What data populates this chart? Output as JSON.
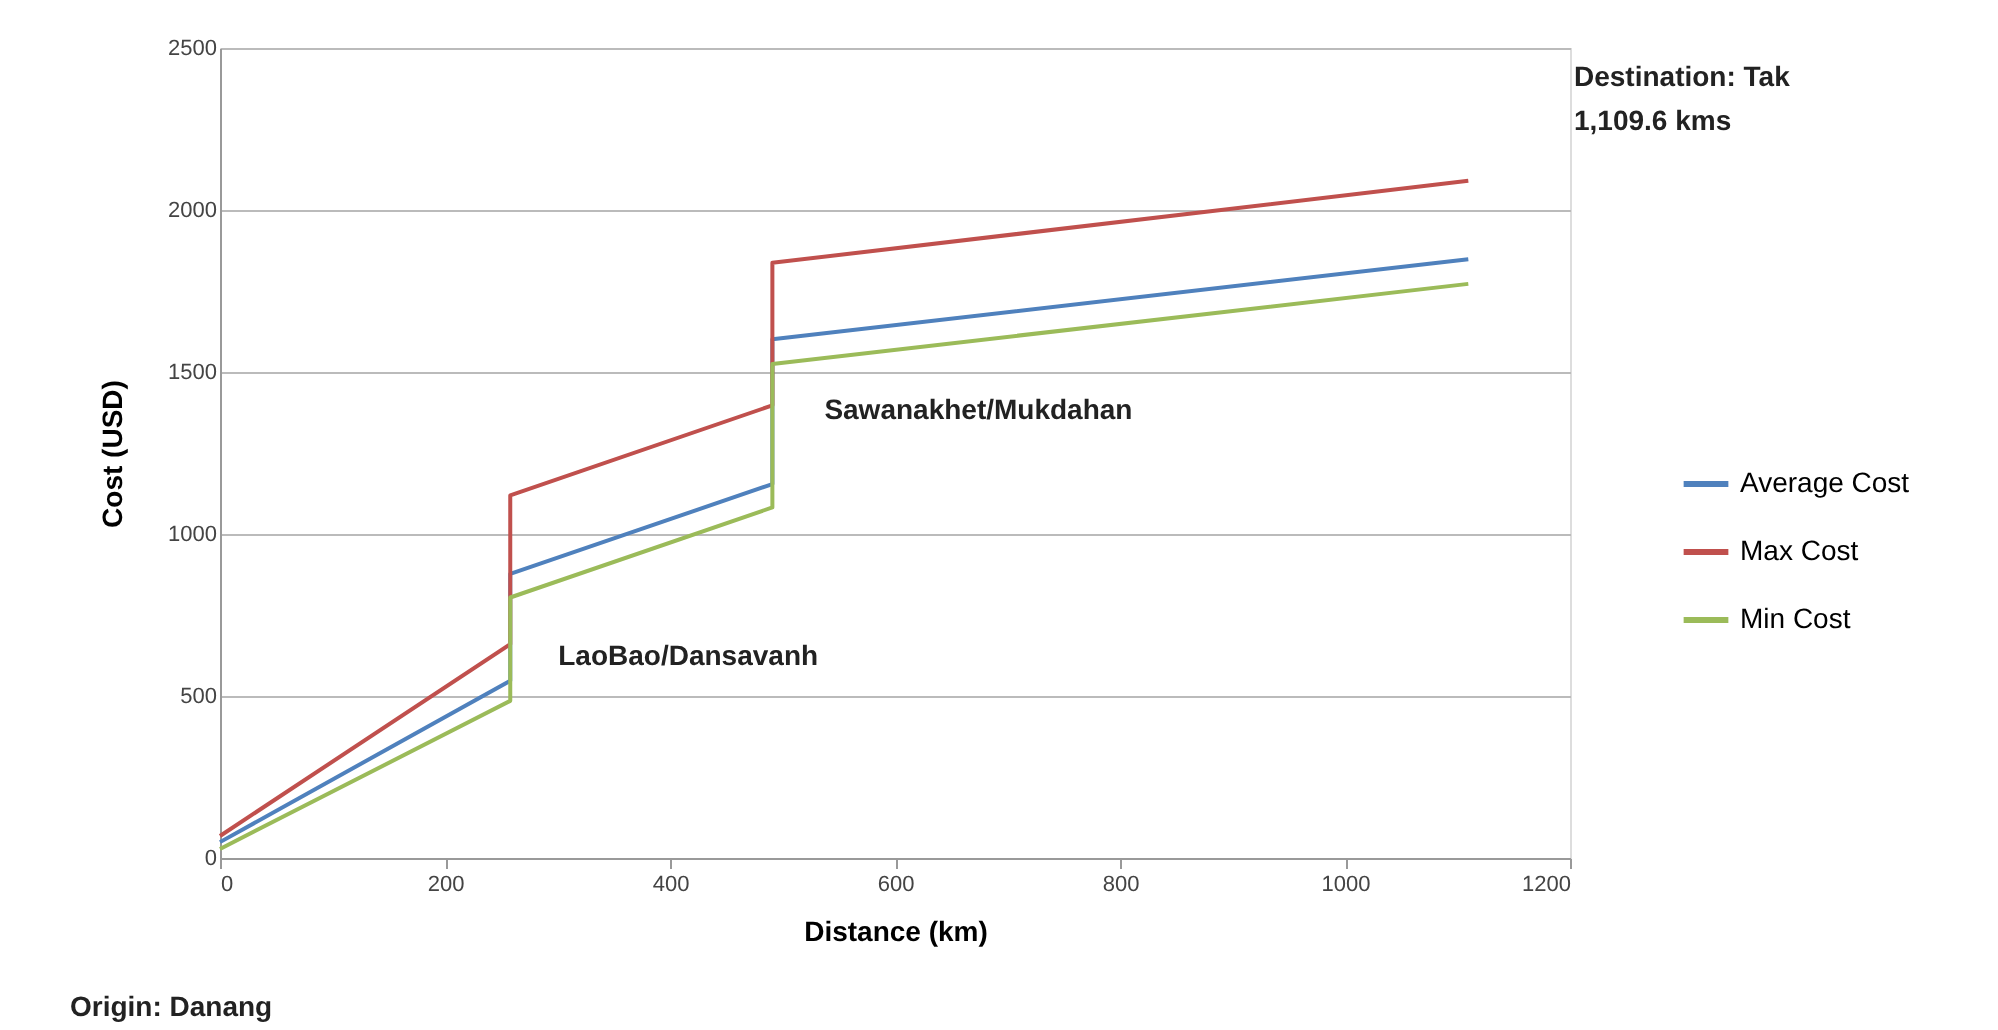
{
  "chart_data": {
    "type": "line",
    "xlabel": "Distance (km)",
    "ylabel": "Cost (USD)",
    "xlim": [
      0,
      1200
    ],
    "xticks": [
      0,
      200,
      400,
      600,
      800,
      1000,
      1200
    ],
    "ylim": [
      0,
      2500
    ],
    "yticks": [
      0,
      500,
      1000,
      1500,
      2000,
      2500
    ],
    "grid": "y",
    "legend": "right",
    "line_style": "solid",
    "marker": "none",
    "series": [
      {
        "name": "Average Cost",
        "color": "#4f81bd",
        "x": [
          0,
          258,
          258,
          491,
          491,
          1109.6
        ],
        "values": [
          49,
          547,
          877,
          1154,
          1601,
          1848
        ]
      },
      {
        "name": "Max Cost",
        "color": "#c0504d",
        "x": [
          0,
          258,
          258,
          491,
          491,
          1109.6
        ],
        "values": [
          68,
          660,
          1119,
          1397,
          1837,
          2090
        ]
      },
      {
        "name": "Min Cost",
        "color": "#9bbb59",
        "x": [
          0,
          258,
          258,
          491,
          491,
          1109.6
        ],
        "values": [
          28,
          485,
          804,
          1082,
          1525,
          1772
        ]
      }
    ],
    "annotations": [
      {
        "text": "LaoBao/Dansavanh",
        "x": 258,
        "y": 620
      },
      {
        "text": "Sawanakhet/Mukdahan",
        "x": 491,
        "y": 1380
      },
      "Destination: Tak\n1,109.6 kms",
      "Origin: Danang"
    ]
  }
}
